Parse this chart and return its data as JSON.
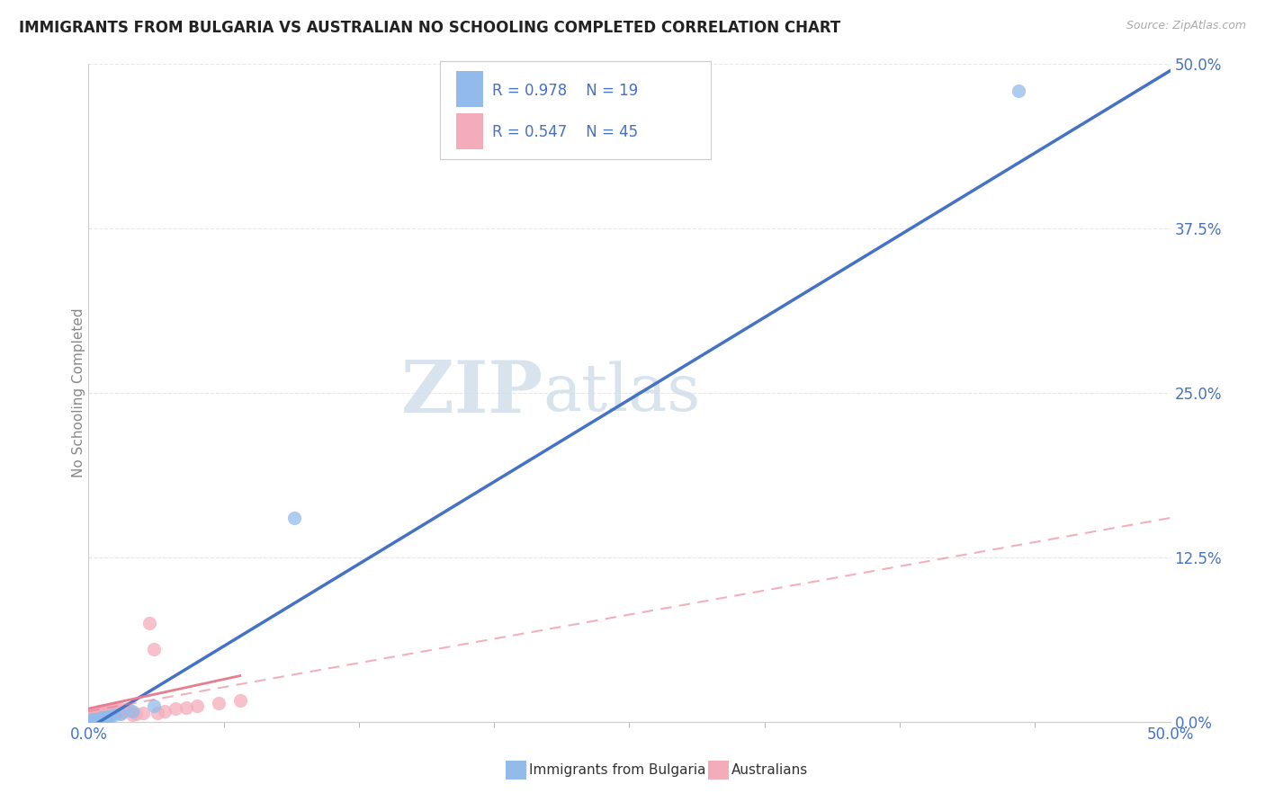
{
  "title": "IMMIGRANTS FROM BULGARIA VS AUSTRALIAN NO SCHOOLING COMPLETED CORRELATION CHART",
  "source": "Source: ZipAtlas.com",
  "ylabel": "No Schooling Completed",
  "watermark_part1": "ZIP",
  "watermark_part2": "atlas",
  "xlim": [
    0.0,
    0.5
  ],
  "ylim": [
    0.0,
    0.5
  ],
  "xtick_positions": [
    0.0,
    0.5
  ],
  "xtick_labels": [
    "0.0%",
    "50.0%"
  ],
  "xtick_minor_positions": [
    0.0625,
    0.125,
    0.1875,
    0.25,
    0.3125,
    0.375,
    0.4375
  ],
  "ytick_positions": [
    0.0,
    0.125,
    0.25,
    0.375,
    0.5
  ],
  "ytick_labels": [
    "0.0%",
    "12.5%",
    "25.0%",
    "37.5%",
    "50.0%"
  ],
  "bulgaria_color": "#92BBEC",
  "bulgaria_line_color": "#4472C4",
  "australia_color": "#F4ACBA",
  "australia_line_color": "#E87C90",
  "bulgaria_R": 0.978,
  "bulgaria_N": 19,
  "australia_R": 0.547,
  "australia_N": 45,
  "axis_tick_color": "#4472C4",
  "title_color": "#222222",
  "source_color": "#AAAAAA",
  "ylabel_color": "#888888",
  "watermark_color": "#C8D8E8",
  "grid_color": "#E8E8E8",
  "bg_color": "#FFFFFF",
  "bulgaria_points_x": [
    0.001,
    0.002,
    0.002,
    0.003,
    0.003,
    0.004,
    0.005,
    0.006,
    0.006,
    0.007,
    0.008,
    0.009,
    0.01,
    0.012,
    0.015,
    0.02,
    0.03,
    0.095,
    0.43
  ],
  "bulgaria_points_y": [
    0.001,
    0.001,
    0.002,
    0.001,
    0.002,
    0.002,
    0.002,
    0.002,
    0.003,
    0.003,
    0.003,
    0.004,
    0.004,
    0.005,
    0.006,
    0.008,
    0.012,
    0.155,
    0.48
  ],
  "australia_points_x": [
    0.001,
    0.001,
    0.002,
    0.002,
    0.002,
    0.003,
    0.003,
    0.003,
    0.004,
    0.004,
    0.004,
    0.005,
    0.005,
    0.005,
    0.006,
    0.006,
    0.007,
    0.007,
    0.007,
    0.008,
    0.008,
    0.009,
    0.009,
    0.01,
    0.01,
    0.011,
    0.012,
    0.013,
    0.014,
    0.015,
    0.016,
    0.017,
    0.018,
    0.02,
    0.022,
    0.025,
    0.028,
    0.03,
    0.032,
    0.035,
    0.04,
    0.045,
    0.05,
    0.06,
    0.07
  ],
  "australia_points_y": [
    0.002,
    0.004,
    0.003,
    0.005,
    0.006,
    0.003,
    0.005,
    0.006,
    0.003,
    0.005,
    0.007,
    0.004,
    0.006,
    0.008,
    0.005,
    0.007,
    0.005,
    0.007,
    0.009,
    0.006,
    0.008,
    0.007,
    0.009,
    0.007,
    0.009,
    0.008,
    0.009,
    0.01,
    0.011,
    0.007,
    0.008,
    0.009,
    0.01,
    0.005,
    0.006,
    0.007,
    0.075,
    0.055,
    0.007,
    0.008,
    0.01,
    0.011,
    0.012,
    0.014,
    0.016
  ],
  "bulgaria_line_x0": 0.0,
  "bulgaria_line_x1": 0.5,
  "bulgaria_line_y0": -0.005,
  "bulgaria_line_y1": 0.495,
  "australia_solid_line_x0": 0.0,
  "australia_solid_line_x1": 0.07,
  "australia_solid_line_y0": 0.01,
  "australia_solid_line_y1": 0.035,
  "australia_dashed_line_x0": 0.0,
  "australia_dashed_line_x1": 0.5,
  "australia_dashed_line_y0": 0.008,
  "australia_dashed_line_y1": 0.155
}
